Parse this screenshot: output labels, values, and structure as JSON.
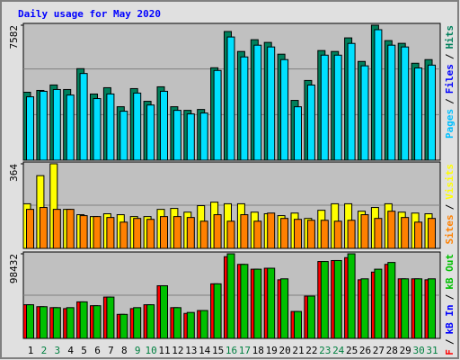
{
  "chart_data": [
    {
      "type": "bar",
      "title": "Daily usage for May 2020",
      "categories": [
        "1",
        "2",
        "3",
        "4",
        "5",
        "6",
        "7",
        "8",
        "9",
        "10",
        "11",
        "12",
        "13",
        "14",
        "15",
        "16",
        "17",
        "18",
        "19",
        "20",
        "21",
        "22",
        "23",
        "24",
        "25",
        "26",
        "27",
        "28",
        "29",
        "30",
        "31"
      ],
      "category_colors": [
        "#000000",
        "#008040",
        "#008040",
        "#000000",
        "#000000",
        "#000000",
        "#000000",
        "#000000",
        "#008040",
        "#008040",
        "#000000",
        "#000000",
        "#000000",
        "#000000",
        "#000000",
        "#008040",
        "#008040",
        "#000000",
        "#000000",
        "#000000",
        "#000000",
        "#000000",
        "#008040",
        "#008040",
        "#000000",
        "#000000",
        "#000000",
        "#000000",
        "#000000",
        "#008040",
        "#008040"
      ],
      "ylim": [
        0,
        7582
      ],
      "yticks": [
        7582
      ],
      "legend": [
        {
          "text": "Pages",
          "color": "#00c0ff"
        },
        {
          "text": "/",
          "color": "#000000"
        },
        {
          "text": "Files",
          "color": "#0000ff"
        },
        {
          "text": "/",
          "color": "#000000"
        },
        {
          "text": "Hits",
          "color": "#00805c"
        }
      ],
      "series": [
        {
          "color": "#00805c",
          "values": [
            3817,
            3919,
            4224,
            3970,
            5141,
            3716,
            4072,
            3003,
            4021,
            3308,
            4122,
            3003,
            2799,
            2850,
            5191,
            7227,
            6106,
            6768,
            6615,
            5955,
            3359,
            4478,
            6157,
            6106,
            6870,
            5547,
            7582,
            6717,
            6564,
            5446,
            5649
          ]
        },
        {
          "color": "#00e0ff",
          "values": [
            3560,
            3870,
            3970,
            3660,
            4870,
            3460,
            3720,
            2750,
            3770,
            3100,
            3870,
            2800,
            2600,
            2650,
            5040,
            6920,
            5800,
            6460,
            6360,
            5650,
            3000,
            4220,
            5900,
            5900,
            6560,
            5300,
            7330,
            6460,
            6360,
            5180,
            5340
          ]
        }
      ]
    },
    {
      "type": "bar",
      "ylim": [
        0,
        364
      ],
      "yticks": [
        364
      ],
      "legend": [
        {
          "text": "Sites",
          "color": "#ff8000"
        },
        {
          "text": "/",
          "color": "#000000"
        },
        {
          "text": "Visits",
          "color": "#ffff00"
        }
      ],
      "series": [
        {
          "color": "#ffff00",
          "values": [
            192,
            313,
            364,
            168,
            145,
            137,
            149,
            145,
            137,
            137,
            168,
            172,
            156,
            184,
            199,
            192,
            192,
            156,
            149,
            141,
            152,
            129,
            164,
            192,
            192,
            160,
            176,
            192,
            156,
            152,
            149
          ]
        },
        {
          "color": "#ff8000",
          "values": [
            168,
            176,
            168,
            168,
            141,
            137,
            133,
            113,
            129,
            125,
            137,
            137,
            133,
            117,
            145,
            117,
            145,
            117,
            152,
            129,
            125,
            121,
            121,
            117,
            121,
            145,
            129,
            160,
            133,
            113,
            129
          ]
        }
      ]
    },
    {
      "type": "bar",
      "ylim": [
        0,
        98432
      ],
      "yticks": [
        98432
      ],
      "legend": [
        {
          "text": "kB F",
          "color": "#ff0000"
        },
        {
          "text": "/",
          "color": "#000000"
        },
        {
          "text": "kB In",
          "color": "#0000ff"
        },
        {
          "text": "/",
          "color": "#000000"
        },
        {
          "text": "kB Out",
          "color": "#00c000"
        }
      ],
      "series": [
        {
          "color": "#ff0000",
          "values": [
            39147,
            36910,
            35792,
            34674,
            42503,
            38029,
            48095,
            27961,
            34674,
            39147,
            61270,
            35792,
            29080,
            32436,
            63507,
            95076,
            86128,
            80536,
            81654,
            68208,
            31318,
            49213,
            89484,
            90603,
            93958,
            68208,
            77157,
            86128,
            69326,
            69326,
            68208
          ]
        },
        {
          "color": "#00c000",
          "values": [
            39147,
            36910,
            35792,
            35792,
            42503,
            38029,
            48095,
            27961,
            35792,
            39147,
            61270,
            35792,
            30198,
            32436,
            63507,
            98432,
            86128,
            80536,
            81654,
            69326,
            31318,
            49213,
            89484,
            90603,
            98432,
            69326,
            80536,
            88365,
            69326,
            69326,
            69326
          ]
        }
      ]
    }
  ]
}
